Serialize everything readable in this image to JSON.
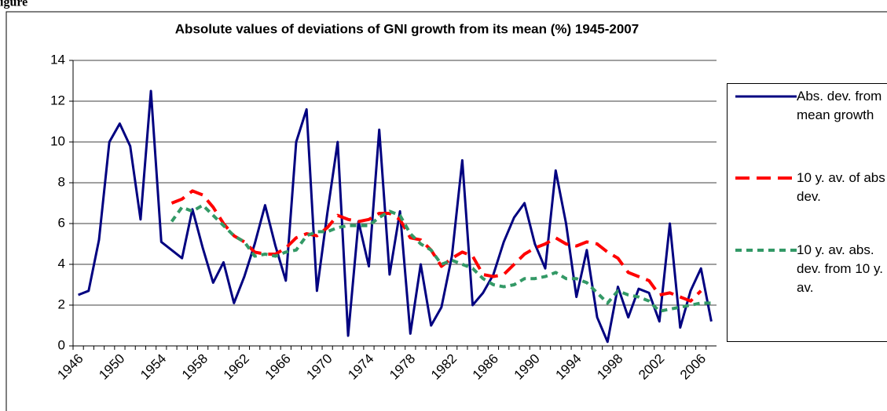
{
  "figure_caption": "igure",
  "chart_data": {
    "type": "line",
    "title": "Absolute values of deviations of GNI growth from its mean (%) 1945-2007",
    "categories": [
      "1946",
      null,
      null,
      null,
      "1950",
      null,
      null,
      null,
      "1954",
      null,
      null,
      null,
      "1958",
      null,
      null,
      null,
      "1962",
      null,
      null,
      null,
      "1966",
      null,
      null,
      null,
      "1970",
      null,
      null,
      null,
      "1974",
      null,
      null,
      null,
      "1978",
      null,
      null,
      null,
      "1982",
      null,
      null,
      null,
      "1986",
      null,
      null,
      null,
      "1990",
      null,
      null,
      null,
      "1994",
      null,
      null,
      null,
      "1998",
      null,
      null,
      null,
      "2002",
      null,
      null,
      null,
      "2006",
      null
    ],
    "series": [
      {
        "name": "Abs. dev. from mean growth",
        "color": "#000080",
        "dash": "solid",
        "values": [
          2.5,
          2.7,
          5.2,
          10.0,
          10.9,
          9.8,
          6.2,
          12.5,
          5.1,
          4.7,
          4.3,
          6.7,
          4.8,
          3.1,
          4.1,
          2.1,
          3.4,
          5.0,
          6.9,
          4.9,
          3.2,
          10.0,
          11.6,
          2.7,
          6.5,
          10.0,
          0.5,
          6.1,
          3.9,
          10.6,
          3.5,
          6.6,
          0.6,
          4.0,
          1.0,
          1.9,
          4.4,
          9.1,
          2.0,
          2.6,
          3.5,
          5.1,
          6.3,
          7.0,
          5.0,
          3.8,
          8.6,
          6.0,
          2.4,
          4.7,
          1.4,
          0.2,
          2.9,
          1.4,
          2.8,
          2.6,
          1.2,
          6.0,
          0.9,
          2.7,
          3.8,
          1.2
        ]
      },
      {
        "name": "10 y. av. of abs dev.",
        "color": "#ff0000",
        "dash": "long",
        "values": [
          null,
          null,
          null,
          null,
          null,
          null,
          null,
          null,
          null,
          7.0,
          7.2,
          7.6,
          7.4,
          6.8,
          6.0,
          5.4,
          5.1,
          4.6,
          4.5,
          4.5,
          4.8,
          5.3,
          5.5,
          5.4,
          5.8,
          6.4,
          6.2,
          6.1,
          6.2,
          6.5,
          6.5,
          6.2,
          5.3,
          5.2,
          4.7,
          3.9,
          4.3,
          4.6,
          4.4,
          3.5,
          3.4,
          3.5,
          4.0,
          4.5,
          4.8,
          5.0,
          5.3,
          5.0,
          4.9,
          5.1,
          5.0,
          4.6,
          4.3,
          3.6,
          3.4,
          3.2,
          2.5,
          2.6,
          2.4,
          2.2,
          2.7,
          null
        ]
      },
      {
        "name": "10 y. av. abs. dev. from 10 y. av.",
        "color": "#339966",
        "dash": "short",
        "values": [
          null,
          null,
          null,
          null,
          null,
          null,
          null,
          null,
          null,
          6.1,
          6.8,
          6.6,
          6.9,
          6.4,
          5.9,
          5.4,
          5.1,
          4.4,
          4.5,
          4.4,
          4.6,
          4.7,
          5.4,
          5.6,
          5.6,
          5.8,
          5.9,
          5.9,
          5.9,
          6.3,
          6.6,
          6.4,
          5.5,
          5.0,
          4.7,
          4.0,
          4.2,
          4.0,
          3.8,
          3.3,
          3.0,
          2.9,
          3.0,
          3.3,
          3.3,
          3.4,
          3.6,
          3.3,
          3.3,
          3.1,
          2.6,
          2.1,
          2.7,
          2.5,
          2.4,
          2.2,
          1.7,
          1.8,
          1.9,
          2.0,
          2.1,
          2.1
        ]
      }
    ],
    "ylim": [
      0,
      14
    ],
    "yticks": [
      0,
      2,
      4,
      6,
      8,
      10,
      12,
      14
    ],
    "grid": true,
    "legend": "right"
  }
}
